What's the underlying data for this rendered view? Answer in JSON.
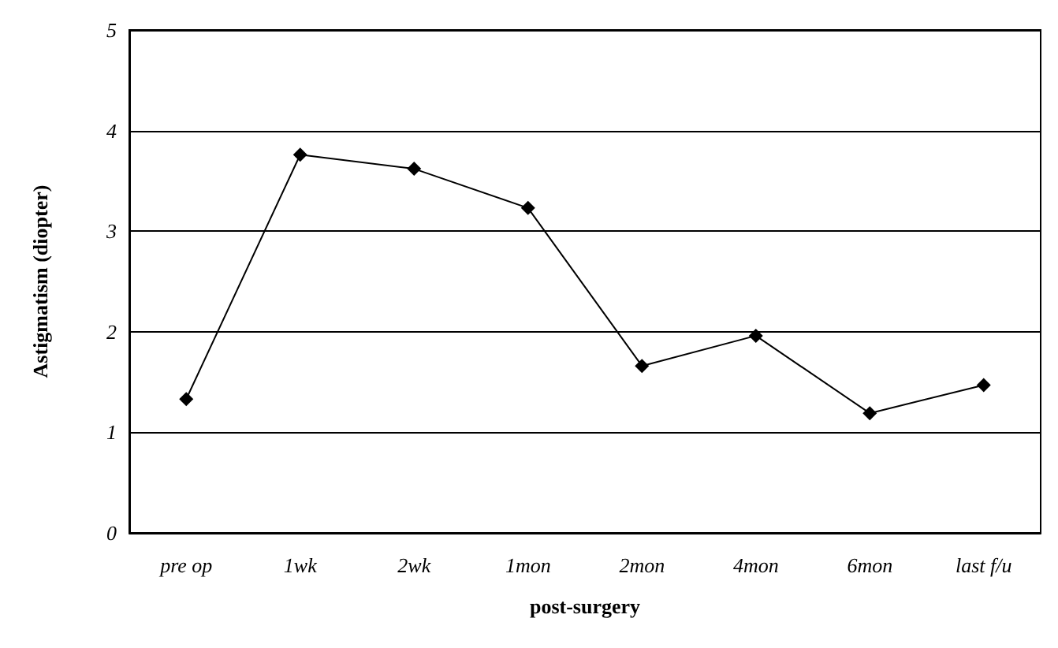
{
  "chart_data": {
    "type": "line",
    "xlabel": "post-surgery",
    "ylabel": "Astigmatism (diopter)",
    "categories": [
      "pre op",
      "1wk",
      "2wk",
      "1mon",
      "2mon",
      "4mon",
      "6mon",
      "last f/u"
    ],
    "series": [
      {
        "color": "#000000",
        "values": [
          1.33,
          3.76,
          3.62,
          3.23,
          1.66,
          1.96,
          1.19,
          1.47
        ]
      }
    ],
    "ylim": [
      0,
      5
    ],
    "yticks": [
      0,
      1,
      2,
      3,
      4,
      5
    ],
    "grid": "y",
    "marker": "diamond",
    "line_style": "solid",
    "legend": false
  }
}
